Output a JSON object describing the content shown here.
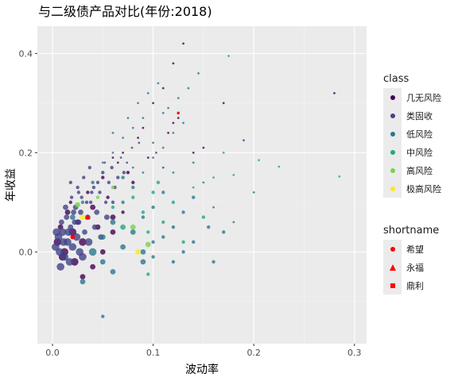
{
  "chart_data": {
    "type": "scatter",
    "title": "与二级债产品对比(年份:2018)",
    "xlabel": "波动率",
    "ylabel": "年收益",
    "xlim": [
      -0.015,
      0.312
    ],
    "ylim": [
      -0.185,
      0.455
    ],
    "x_ticks": [
      "0.0",
      "0.1",
      "0.2",
      "0.3"
    ],
    "y_ticks": [
      "0.0",
      "0.2",
      "0.4"
    ],
    "x_tick_values": [
      0.0,
      0.1,
      0.2,
      0.3
    ],
    "y_tick_values": [
      0.0,
      0.2,
      0.4
    ],
    "grid": true,
    "legend_placement": "right",
    "legends": [
      {
        "title": "class",
        "entries": [
          {
            "label": "几无风险",
            "color": "#440154"
          },
          {
            "label": "类固收",
            "color": "#414487"
          },
          {
            "label": "低风险",
            "color": "#2a788e"
          },
          {
            "label": "中风险",
            "color": "#22a884"
          },
          {
            "label": "高风险",
            "color": "#7ad151"
          },
          {
            "label": "极高风险",
            "color": "#fde725"
          }
        ]
      },
      {
        "title": "shortname",
        "entries": [
          {
            "label": "希望",
            "shape": "circle",
            "color": "#ff0000"
          },
          {
            "label": "永福",
            "shape": "triangle",
            "color": "#ff0000"
          },
          {
            "label": "鼎利",
            "shape": "square",
            "color": "#ff0000"
          }
        ]
      }
    ],
    "series": [
      {
        "name": "几无风险",
        "color": "#440154",
        "points": [
          [
            0.005,
            0.02
          ],
          [
            0.008,
            0.05
          ],
          [
            0.012,
            0.0
          ],
          [
            0.015,
            0.08
          ],
          [
            0.02,
            0.04
          ],
          [
            0.01,
            -0.01
          ],
          [
            0.018,
            0.1
          ],
          [
            0.025,
            0.06
          ],
          [
            0.03,
            0.02
          ],
          [
            0.022,
            -0.02
          ],
          [
            0.035,
            0.12
          ],
          [
            0.04,
            0.09
          ],
          [
            0.045,
            0.05
          ],
          [
            0.05,
            0.15
          ],
          [
            0.055,
            0.11
          ],
          [
            0.06,
            0.07
          ],
          [
            0.065,
            0.18
          ],
          [
            0.07,
            0.2
          ],
          [
            0.08,
            0.14
          ],
          [
            0.09,
            0.25
          ],
          [
            0.1,
            0.3
          ],
          [
            0.11,
            0.33
          ],
          [
            0.12,
            0.38
          ],
          [
            0.13,
            0.42
          ],
          [
            0.115,
            0.24
          ],
          [
            0.125,
            0.27
          ],
          [
            0.095,
            0.19
          ],
          [
            0.085,
            0.23
          ],
          [
            0.075,
            0.16
          ],
          [
            0.06,
            0.19
          ],
          [
            0.04,
            -0.03
          ],
          [
            0.05,
            0.0
          ],
          [
            0.06,
            0.04
          ],
          [
            0.07,
            0.08
          ],
          [
            0.03,
            -0.05
          ],
          [
            0.14,
            0.2
          ],
          [
            0.15,
            0.21
          ],
          [
            0.17,
            0.3
          ],
          [
            0.28,
            0.32
          ],
          [
            0.12,
            0.26
          ]
        ]
      },
      {
        "name": "类固收",
        "color": "#414487",
        "points": [
          [
            0.003,
            0.01
          ],
          [
            0.006,
            0.03
          ],
          [
            0.009,
            0.06
          ],
          [
            0.012,
            -0.01
          ],
          [
            0.015,
            0.02
          ],
          [
            0.018,
            0.05
          ],
          [
            0.021,
            0.08
          ],
          [
            0.024,
            0.03
          ],
          [
            0.027,
            0.0
          ],
          [
            0.01,
            0.04
          ],
          [
            0.014,
            0.07
          ],
          [
            0.017,
            -0.02
          ],
          [
            0.02,
            0.01
          ],
          [
            0.023,
            0.09
          ],
          [
            0.026,
            0.06
          ],
          [
            0.029,
            0.11
          ],
          [
            0.032,
            0.04
          ],
          [
            0.035,
            0.07
          ],
          [
            0.038,
            0.1
          ],
          [
            0.041,
            0.13
          ],
          [
            0.044,
            0.08
          ],
          [
            0.047,
            0.12
          ],
          [
            0.05,
            0.16
          ],
          [
            0.053,
            0.1
          ],
          [
            0.056,
            0.14
          ],
          [
            0.059,
            0.17
          ],
          [
            0.062,
            0.13
          ],
          [
            0.065,
            0.15
          ],
          [
            0.068,
            0.19
          ],
          [
            0.071,
            0.16
          ],
          [
            0.008,
            -0.03
          ],
          [
            0.013,
            0.09
          ],
          [
            0.019,
            0.11
          ],
          [
            0.025,
            0.13
          ],
          [
            0.031,
            0.15
          ],
          [
            0.036,
            0.02
          ],
          [
            0.042,
            0.05
          ],
          [
            0.048,
            0.03
          ],
          [
            0.054,
            0.07
          ],
          [
            0.06,
            0.1
          ],
          [
            0.004,
            0.04
          ],
          [
            0.007,
            0.0
          ],
          [
            0.011,
            0.02
          ],
          [
            0.016,
            0.04
          ],
          [
            0.022,
            0.06
          ],
          [
            0.028,
            0.08
          ],
          [
            0.034,
            0.1
          ],
          [
            0.039,
            0.12
          ],
          [
            0.045,
            0.14
          ],
          [
            0.052,
            0.18
          ],
          [
            0.19,
            0.225
          ],
          [
            0.074,
            0.18
          ],
          [
            0.079,
            0.21
          ],
          [
            0.086,
            0.22
          ],
          [
            0.103,
            0.2
          ],
          [
            0.11,
            0.17
          ],
          [
            0.03,
            -0.01
          ],
          [
            0.026,
            0.12
          ],
          [
            0.018,
            0.14
          ],
          [
            0.037,
            0.17
          ]
        ]
      },
      {
        "name": "低风险",
        "color": "#2a788e",
        "points": [
          [
            0.02,
            0.07
          ],
          [
            0.03,
            0.1
          ],
          [
            0.04,
            0.14
          ],
          [
            0.05,
            0.18
          ],
          [
            0.06,
            0.2
          ],
          [
            0.07,
            0.23
          ],
          [
            0.08,
            0.25
          ],
          [
            0.09,
            0.27
          ],
          [
            0.1,
            0.22
          ],
          [
            0.11,
            0.28
          ],
          [
            0.04,
            0.0
          ],
          [
            0.05,
            0.03
          ],
          [
            0.06,
            0.06
          ],
          [
            0.07,
            0.1
          ],
          [
            0.08,
            0.13
          ],
          [
            0.09,
            0.16
          ],
          [
            0.1,
            0.19
          ],
          [
            0.11,
            0.21
          ],
          [
            0.12,
            0.24
          ],
          [
            0.13,
            0.26
          ],
          [
            0.05,
            -0.02
          ],
          [
            0.06,
            -0.04
          ],
          [
            0.07,
            0.01
          ],
          [
            0.08,
            0.04
          ],
          [
            0.09,
            0.07
          ],
          [
            0.1,
            0.09
          ],
          [
            0.11,
            0.12
          ],
          [
            0.12,
            0.16
          ],
          [
            0.14,
            0.18
          ],
          [
            0.15,
            0.14
          ],
          [
            0.03,
            -0.06
          ],
          [
            0.05,
            -0.13
          ],
          [
            0.09,
            -0.02
          ],
          [
            0.1,
            0.02
          ],
          [
            0.12,
            0.05
          ],
          [
            0.13,
            0.08
          ],
          [
            0.14,
            0.11
          ],
          [
            0.16,
            0.09
          ],
          [
            0.18,
            0.06
          ],
          [
            0.2,
            0.12
          ],
          [
            0.06,
            0.24
          ],
          [
            0.075,
            0.27
          ],
          [
            0.085,
            0.3
          ],
          [
            0.095,
            0.32
          ],
          [
            0.105,
            0.34
          ],
          [
            0.135,
            0.33
          ],
          [
            0.145,
            0.36
          ],
          [
            0.125,
            0.31
          ],
          [
            0.115,
            0.29
          ],
          [
            0.155,
            0.05
          ],
          [
            0.09,
            0.0
          ],
          [
            0.1,
            -0.01
          ],
          [
            0.11,
            0.03
          ],
          [
            0.12,
            -0.02
          ],
          [
            0.13,
            0.0
          ],
          [
            0.16,
            -0.02
          ],
          [
            0.14,
            0.02
          ],
          [
            0.17,
            0.04
          ],
          [
            0.08,
            0.17
          ],
          [
            0.07,
            0.15
          ]
        ]
      },
      {
        "name": "中风险",
        "color": "#22a884",
        "points": [
          [
            0.09,
            0.08
          ],
          [
            0.095,
            0.04
          ],
          [
            0.095,
            -0.045
          ],
          [
            0.1,
            0.12
          ],
          [
            0.12,
            0.1
          ],
          [
            0.14,
            0.13
          ],
          [
            0.16,
            0.15
          ],
          [
            0.175,
            0.395
          ],
          [
            0.225,
            0.172
          ],
          [
            0.205,
            0.185
          ],
          [
            0.18,
            0.155
          ],
          [
            0.285,
            0.152
          ],
          [
            0.11,
            0.06
          ],
          [
            0.13,
            0.02
          ],
          [
            0.06,
            0.09
          ],
          [
            0.07,
            0.05
          ],
          [
            0.17,
            0.2
          ],
          [
            0.15,
            0.07
          ],
          [
            0.08,
            0.11
          ],
          [
            0.105,
            0.14
          ]
        ]
      },
      {
        "name": "高风险",
        "color": "#7ad151",
        "points": [
          [
            0.025,
            0.095
          ],
          [
            0.08,
            0.05
          ],
          [
            0.095,
            0.015
          ],
          [
            0.045,
            0.11
          ],
          [
            0.06,
            0.13
          ]
        ]
      },
      {
        "name": "极高风险",
        "color": "#fde725",
        "points": [
          [
            0.03,
            0.07
          ],
          [
            0.085,
            0.0
          ]
        ]
      }
    ],
    "shortname_points": [
      {
        "label": "希望",
        "shape": "circle",
        "color": "#ff0000",
        "x": 0.02,
        "y": 0.03
      },
      {
        "label": "永福",
        "shape": "triangle",
        "color": "#ff0000",
        "x": 0.035,
        "y": 0.07
      },
      {
        "label": "鼎利",
        "shape": "square",
        "color": "#ff0000",
        "x": 0.125,
        "y": 0.28
      }
    ]
  }
}
